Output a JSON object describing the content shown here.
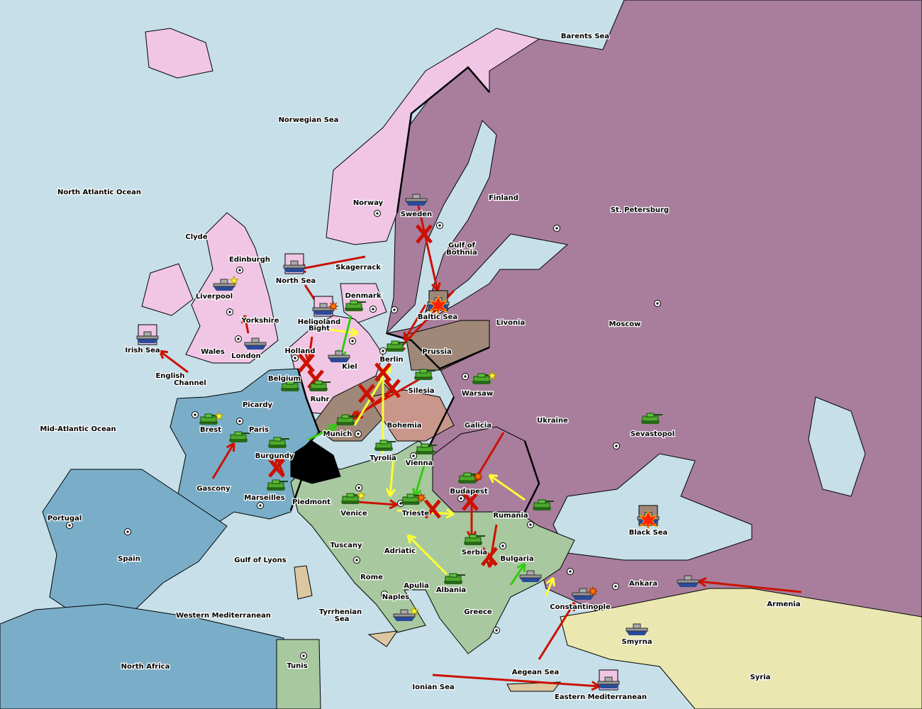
{
  "colors": {
    "sea": "#c6dfe9",
    "england": "#f0c6e4",
    "france": "#7aaec8",
    "russia": "#a87e9c",
    "germany": "#a08878",
    "austria_bohemia": "#c8968a",
    "italy": "#a8c8a0",
    "turkey_neutral": "#eae8b0",
    "switzerland": "#000000",
    "islands": "#dcc8a0",
    "order_failed": "#cc1100",
    "order_support": "#ffff33",
    "order_convoy": "#33cc11"
  },
  "labels": [
    "North Atlantic Ocean",
    "Norwegian Sea",
    "Barents Sea",
    "Clyde",
    "Edinburgh",
    "Liverpool",
    "Yorkshire",
    "Wales",
    "London",
    "Irish Sea",
    "English",
    "Channel",
    "Mid-Atlantic Ocean",
    "North Sea",
    "Skagerrack",
    "Norway",
    "Sweden",
    "Gulf of",
    "Bothnia",
    "Finland",
    "St. Petersburg",
    "Denmark",
    "Heligoland",
    "Bight",
    "Holland",
    "Kiel",
    "Berlin",
    "Prussia",
    "Baltic Sea",
    "Livonia",
    "Moscow",
    "Belgium",
    "Ruhr",
    "Silesia",
    "Warsaw",
    "Picardy",
    "Brest",
    "Paris",
    "Munich",
    "Bohemia",
    "Galicia",
    "Ukraine",
    "Sevastopol",
    "Burgundy",
    "Tyrolia",
    "Vienna",
    "Gascony",
    "Marseilles",
    "Piedmont",
    "Venice",
    "Trieste",
    "Budapest",
    "Rumania",
    "Black Sea",
    "Portugal",
    "Spain",
    "Gulf of Lyons",
    "Tuscany",
    "Adriatic",
    "Sea",
    "Serbia",
    "Bulgaria",
    "Rome",
    "Apulia",
    "Naples",
    "Albania",
    "Ankara",
    "Armenia",
    "Constantinople",
    "Western Mediterranean",
    "Tyrrhenian",
    "Sea",
    "Greece",
    "Smyrna",
    "North Africa",
    "Tunis",
    "Aegean Sea",
    "Syria",
    "Ionian Sea",
    "Eastern Mediterranean"
  ],
  "units": [
    {
      "type": "fleet",
      "territory": "North Sea",
      "status": "dislodged"
    },
    {
      "type": "fleet",
      "territory": "Liverpool"
    },
    {
      "type": "fleet",
      "territory": "London"
    },
    {
      "type": "fleet",
      "territory": "Irish Sea",
      "status": "dislodged"
    },
    {
      "type": "fleet",
      "territory": "Heligoland Bight",
      "status": "dislodged"
    },
    {
      "type": "fleet",
      "territory": "Kiel"
    },
    {
      "type": "fleet",
      "territory": "Sweden"
    },
    {
      "type": "fleet",
      "territory": "Baltic Sea",
      "status": "destroyed"
    },
    {
      "type": "fleet",
      "territory": "Black Sea",
      "status": "destroyed"
    },
    {
      "type": "fleet",
      "territory": "Bulgaria"
    },
    {
      "type": "fleet",
      "territory": "Constantinople"
    },
    {
      "type": "fleet",
      "territory": "Ankara"
    },
    {
      "type": "fleet",
      "territory": "Smyrna"
    },
    {
      "type": "fleet",
      "territory": "Naples"
    },
    {
      "type": "fleet",
      "territory": "Eastern Mediterranean",
      "status": "dislodged"
    },
    {
      "type": "army",
      "territory": "Denmark"
    },
    {
      "type": "army",
      "territory": "Berlin"
    },
    {
      "type": "army",
      "territory": "Silesia"
    },
    {
      "type": "army",
      "territory": "Warsaw"
    },
    {
      "type": "army",
      "territory": "Belgium"
    },
    {
      "type": "army",
      "territory": "Ruhr"
    },
    {
      "type": "army",
      "territory": "Brest"
    },
    {
      "type": "army",
      "territory": "Paris"
    },
    {
      "type": "army",
      "territory": "Burgundy"
    },
    {
      "type": "army",
      "territory": "Marseilles"
    },
    {
      "type": "army",
      "territory": "Munich"
    },
    {
      "type": "army",
      "territory": "Tyrolia"
    },
    {
      "type": "army",
      "territory": "Vienna"
    },
    {
      "type": "army",
      "territory": "Budapest"
    },
    {
      "type": "army",
      "territory": "Venice"
    },
    {
      "type": "army",
      "territory": "Trieste"
    },
    {
      "type": "army",
      "territory": "Rumania"
    },
    {
      "type": "army",
      "territory": "Serbia"
    },
    {
      "type": "army",
      "territory": "Albania"
    },
    {
      "type": "army",
      "territory": "Sevastopol"
    }
  ],
  "build_markers": [
    "Liverpool",
    "Brest",
    "Warsaw",
    "Naples",
    "Venice"
  ],
  "conflict_markers": [
    "Heligoland Bight",
    "Budapest",
    "Trieste",
    "Constantinople"
  ]
}
